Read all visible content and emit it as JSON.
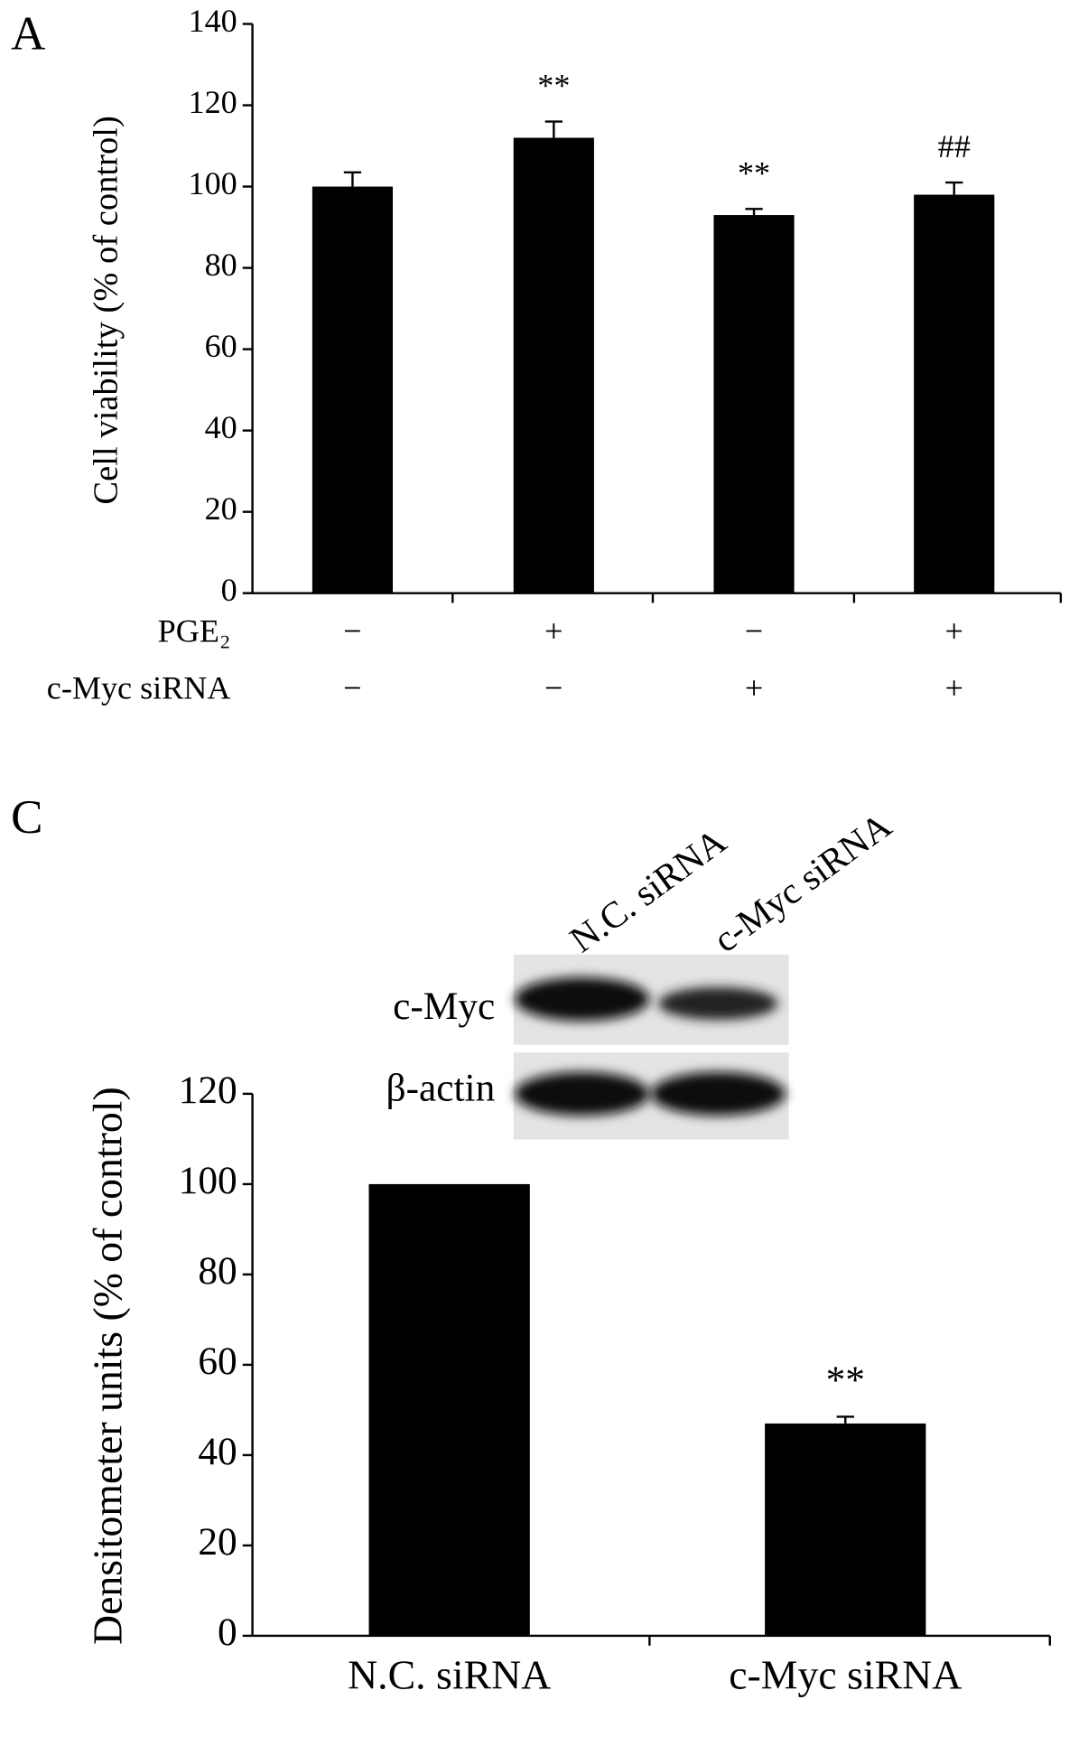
{
  "chart_data": [
    {
      "type": "bar",
      "panel": "A",
      "y_label": "Cell viability (% of control)",
      "values": [
        100,
        112,
        93,
        98
      ],
      "errors": [
        3.5,
        4,
        1.5,
        3
      ],
      "annotations": [
        null,
        "**",
        "**",
        "##"
      ],
      "conditions": [
        {
          "name": "PGE₂",
          "values": [
            "−",
            "+",
            "−",
            "+"
          ]
        },
        {
          "name": "c-Myc siRNA",
          "values": [
            "−",
            "−",
            "+",
            "+"
          ]
        }
      ],
      "color": "#000000",
      "ylim": [
        0,
        140
      ],
      "yticks": [
        0,
        20,
        40,
        60,
        80,
        100,
        120,
        140
      ]
    },
    {
      "type": "bar",
      "panel": "C",
      "y_label": "Densitometer units (% of control)",
      "categories": [
        "N.C. siRNA",
        "c-Myc siRNA"
      ],
      "values": [
        100,
        47
      ],
      "errors": [
        0,
        1.5
      ],
      "annotations": [
        null,
        "**"
      ],
      "blot": {
        "lanes": [
          "N.C. siRNA",
          "c-Myc siRNA"
        ],
        "rows": [
          "c-Myc",
          "β-actin"
        ]
      },
      "color": "#000000",
      "ylim": [
        0,
        120
      ],
      "yticks": [
        0,
        20,
        40,
        60,
        80,
        100,
        120
      ]
    }
  ]
}
